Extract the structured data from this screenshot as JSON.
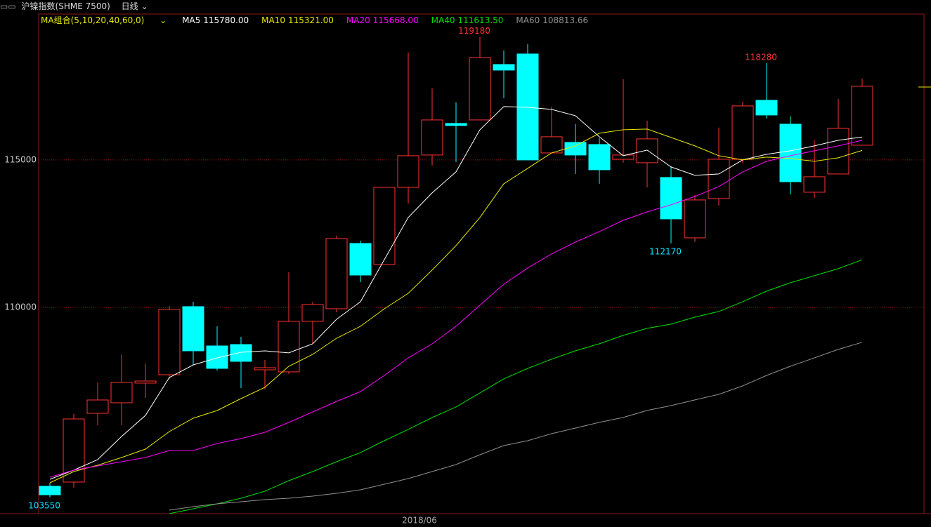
{
  "header": {
    "instrument": "沪镍指数(SHME 7500)",
    "period": "日线",
    "ma_group": "MA组合(5,10,20,40,60,0)"
  },
  "chart_data": {
    "type": "candlestick",
    "xtick_label": "2018/06",
    "ylim": [
      103000,
      119950
    ],
    "yticks": [
      110000,
      115000
    ],
    "grid": true,
    "up_color": "#ff3232",
    "down_color": "#00ffff",
    "open": [
      103930,
      104072,
      106405,
      106762,
      107429,
      107714,
      110024,
      108690,
      108738,
      107881,
      107810,
      109524,
      109952,
      112167,
      111452,
      114071,
      115167,
      116238,
      116357,
      118238,
      118595,
      115238,
      115595,
      115524,
      115024,
      114905,
      114405,
      112357,
      113690,
      115024,
      117024,
      116214,
      113905,
      114524,
      115500
    ],
    "high": [
      104050,
      106381,
      107453,
      108405,
      108095,
      110048,
      110190,
      109357,
      109000,
      108214,
      111190,
      110190,
      112429,
      112262,
      114071,
      118643,
      117429,
      116952,
      119180,
      118714,
      118929,
      116810,
      116214,
      115738,
      117738,
      116333,
      114786,
      113810,
      116095,
      116976,
      118280,
      116476,
      115667,
      117072,
      117762
    ],
    "low": [
      103550,
      103881,
      106000,
      106000,
      106929,
      107571,
      108048,
      107857,
      107262,
      107214,
      107738,
      108762,
      109833,
      110857,
      111452,
      113524,
      114810,
      114929,
      116357,
      117096,
      115000,
      115238,
      114524,
      114191,
      114905,
      114071,
      112170,
      112220,
      113452,
      114905,
      116405,
      113833,
      113714,
      114524,
      115500
    ],
    "close": [
      103640,
      106214,
      106857,
      107453,
      107500,
      109929,
      108524,
      107929,
      108167,
      107952,
      109524,
      110095,
      112333,
      111095,
      114071,
      115143,
      116357,
      116167,
      118476,
      118048,
      115000,
      115786,
      115167,
      114667,
      115167,
      115714,
      113000,
      113643,
      115024,
      116833,
      116524,
      114262,
      114429,
      116071,
      117500
    ],
    "series": [
      {
        "name": "MA5",
        "color": "#ffffff",
        "latest": {
          "value": 115780,
          "label": "115780.00"
        },
        "values": [
          104167,
          104476,
          104833,
          105619,
          106334,
          107619,
          108048,
          108286,
          108476,
          108524,
          108453,
          108762,
          109595,
          110190,
          111619,
          113048,
          113881,
          114595,
          116024,
          116810,
          116786,
          116714,
          116500,
          115786,
          115143,
          115333,
          114762,
          114476,
          114524,
          115000,
          115190,
          115310,
          115476,
          115667,
          115780
        ]
      },
      {
        "name": "MA10",
        "color": "#e8e800",
        "latest": {
          "value": 115321,
          "label": "115321.00"
        },
        "values": [
          104048,
          104429,
          104643,
          104905,
          105190,
          105786,
          106238,
          106500,
          106905,
          107286,
          108000,
          108405,
          108952,
          109357,
          109952,
          110476,
          111262,
          112095,
          113048,
          114191,
          114714,
          115238,
          115476,
          115905,
          116024,
          116048,
          115762,
          115476,
          115143,
          115000,
          115095,
          115048,
          114952,
          115071,
          115321
        ]
      },
      {
        "name": "MA20",
        "color": "#ff00ff",
        "latest": {
          "value": 115668,
          "label": "115668.00"
        },
        "values": [
          104238,
          104476,
          104619,
          104762,
          104905,
          105143,
          105143,
          105381,
          105548,
          105762,
          106095,
          106453,
          106810,
          107143,
          107690,
          108286,
          108762,
          109357,
          110072,
          110786,
          111334,
          111810,
          112214,
          112572,
          112953,
          113238,
          113477,
          113762,
          114096,
          114596,
          114953,
          115143,
          115310,
          115477,
          115668
        ]
      },
      {
        "name": "MA40",
        "color": "#00e000",
        "latest": {
          "value": 111613.5,
          "label": "111613.50"
        },
        "values": [
          null,
          null,
          null,
          null,
          null,
          103000,
          103167,
          103334,
          103524,
          103762,
          104119,
          104429,
          104762,
          105072,
          105477,
          105858,
          106262,
          106620,
          107096,
          107572,
          107929,
          108239,
          108525,
          108763,
          109048,
          109287,
          109429,
          109667,
          109858,
          110191,
          110548,
          110834,
          111072,
          111310,
          111613.5
        ]
      },
      {
        "name": "MA60",
        "color": "#909090",
        "latest": {
          "value": 108813.66,
          "label": "108813.66"
        },
        "values": [
          null,
          null,
          null,
          null,
          null,
          103119,
          103239,
          103334,
          103405,
          103477,
          103524,
          103596,
          103691,
          103810,
          104000,
          104191,
          104429,
          104667,
          105000,
          105310,
          105477,
          105715,
          105905,
          106096,
          106263,
          106501,
          106667,
          106858,
          107048,
          107334,
          107691,
          108001,
          108286,
          108572,
          108813.66
        ]
      }
    ]
  }
}
